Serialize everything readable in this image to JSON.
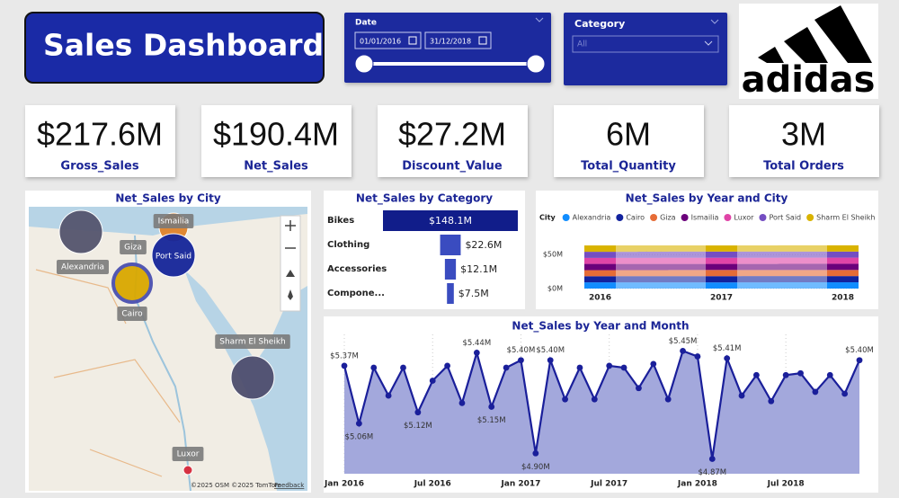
{
  "header": {
    "title": "Sales Dashboard"
  },
  "filters": {
    "date_label": "Date",
    "date_start": "01/01/2016",
    "date_end": "31/12/2018",
    "category_label": "Category",
    "category_value": "All"
  },
  "logo": {
    "text": "adidas"
  },
  "kpis": [
    {
      "value": "$217.6M",
      "label": "Gross_Sales"
    },
    {
      "value": "$190.4M",
      "label": "Net_Sales"
    },
    {
      "value": "$27.2M",
      "label": "Discount_Value"
    },
    {
      "value": "6M",
      "label": "Total_Quantity"
    },
    {
      "value": "3M",
      "label": "Total Orders"
    }
  ],
  "map": {
    "title": "Net_Sales by City",
    "cities": [
      {
        "name": "Alexandria",
        "color": "#55556e"
      },
      {
        "name": "Ismailia",
        "color": "#e0832b"
      },
      {
        "name": "Giza",
        "color": "#6b007b"
      },
      {
        "name": "Port Said",
        "color": "#15259a"
      },
      {
        "name": "Cairo",
        "color": "#d9a800"
      },
      {
        "name": "Sharm El Sheikh",
        "color": "#4e4e6e"
      },
      {
        "name": "Luxor",
        "color": "#d6283a"
      }
    ],
    "attribution": "©2025 OSM  ©2025 TomTom",
    "feedback": "Feedback"
  },
  "chart_data": [
    {
      "type": "funnel",
      "title": "Net_Sales by Category",
      "categories": [
        "Bikes",
        "Clothing",
        "Accessories",
        "Compone..."
      ],
      "values": [
        148.1,
        22.6,
        12.1,
        7.5
      ],
      "value_labels": [
        "$148.1M",
        "$22.6M",
        "$12.1M",
        "$7.5M"
      ],
      "colors": [
        "#111d8a",
        "#3a4cc0",
        "#3a4cc0",
        "#3a4cc0"
      ]
    },
    {
      "type": "ribbon",
      "title": "Net_Sales by Year and City",
      "legend_title": "City",
      "categories": [
        "2016",
        "2017",
        "2018"
      ],
      "series": [
        {
          "name": "Alexandria",
          "color": "#118dff",
          "values": [
            9.1,
            9.0,
            9.2
          ]
        },
        {
          "name": "Cairo",
          "color": "#12239e",
          "values": [
            9.0,
            9.2,
            9.1
          ]
        },
        {
          "name": "Giza",
          "color": "#e66c37",
          "values": [
            8.9,
            9.1,
            9.0
          ]
        },
        {
          "name": "Ismailia",
          "color": "#6b007b",
          "values": [
            9.2,
            8.9,
            9.1
          ]
        },
        {
          "name": "Luxor",
          "color": "#e044a7",
          "values": [
            8.8,
            9.0,
            9.0
          ]
        },
        {
          "name": "Port Said",
          "color": "#744ec2",
          "values": [
            9.0,
            9.1,
            8.9
          ]
        },
        {
          "name": "Sharm El Sheikh",
          "color": "#d9b300",
          "values": [
            9.3,
            9.0,
            9.2
          ]
        }
      ],
      "ylim": [
        0,
        66
      ],
      "yticks": [
        {
          "value": 0,
          "label": "$0M"
        },
        {
          "value": 50,
          "label": "$50M"
        }
      ]
    },
    {
      "type": "line",
      "title": "Net_Sales by Year and Month",
      "area": true,
      "color": "#1a1f9a",
      "area_color": "#a3a8dc",
      "categories": [
        "Jan 2016",
        null,
        null,
        null,
        null,
        null,
        "Jul 2016",
        null,
        null,
        null,
        null,
        null,
        "Jan 2017",
        null,
        null,
        null,
        null,
        null,
        "Jul 2017",
        null,
        null,
        null,
        null,
        null,
        "Jan 2018",
        null,
        null,
        null,
        null,
        null,
        "Jul 2018",
        null,
        null,
        null,
        null,
        null
      ],
      "values": [
        5.37,
        5.06,
        5.36,
        5.21,
        5.36,
        5.12,
        5.29,
        5.37,
        5.17,
        5.44,
        5.15,
        5.36,
        5.4,
        4.9,
        5.4,
        5.19,
        5.36,
        5.19,
        5.37,
        5.36,
        5.25,
        5.38,
        5.19,
        5.45,
        5.42,
        4.87,
        5.41,
        5.21,
        5.32,
        5.18,
        5.32,
        5.33,
        5.23,
        5.32,
        5.22,
        5.4
      ],
      "value_labels": [
        "$5.37M",
        "$5.06M",
        null,
        null,
        null,
        "$5.12M",
        null,
        null,
        null,
        "$5.44M",
        "$5.15M",
        null,
        "$5.40M",
        "$4.90M",
        "$5.40M",
        null,
        null,
        null,
        null,
        null,
        null,
        null,
        null,
        "$5.45M",
        null,
        "$4.87M",
        "$5.41M",
        null,
        null,
        null,
        null,
        null,
        null,
        null,
        null,
        "$5.40M"
      ],
      "ylim": [
        4.8,
        5.5
      ]
    }
  ]
}
